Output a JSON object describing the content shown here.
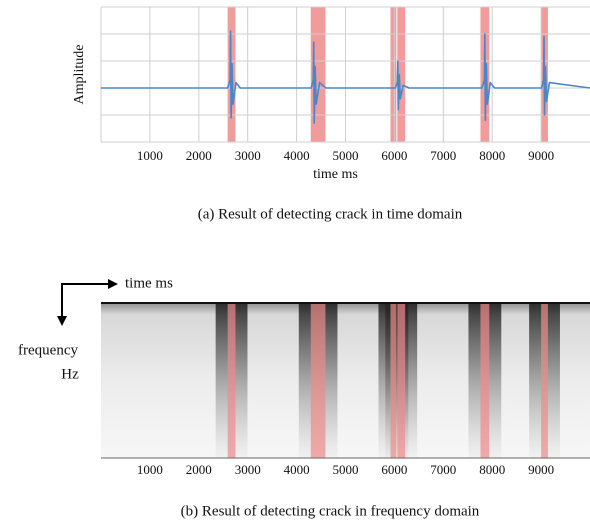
{
  "chart_data": [
    {
      "type": "line",
      "caption": "(a) Result of detecting crack in time domain",
      "ylabel": "Amplitude",
      "xlabel": "time ms",
      "xlim": [
        0,
        10000
      ],
      "xticks": [
        1000,
        2000,
        3000,
        4000,
        5000,
        6000,
        7000,
        8000,
        9000
      ],
      "ylim": [
        -2,
        3
      ],
      "ygrid": [
        -2,
        -1,
        0,
        1,
        2,
        3
      ],
      "grid": true,
      "band_color": "#f08a8a",
      "bands": [
        [
          2590,
          2750
        ],
        [
          4290,
          4590
        ],
        [
          5920,
          6040
        ],
        [
          6060,
          6220
        ],
        [
          7760,
          7940
        ],
        [
          9000,
          9140
        ]
      ],
      "series": [
        {
          "color": "#4a86c8",
          "x": [
            0,
            2590,
            2640,
            2650,
            2660,
            2680,
            2700,
            2760,
            2850,
            4300,
            4340,
            4350,
            4360,
            4380,
            4400,
            4470,
            4600,
            6020,
            6060,
            6070,
            6080,
            6100,
            6120,
            6180,
            6300,
            7790,
            7840,
            7850,
            7860,
            7880,
            7900,
            7960,
            8050,
            9010,
            9050,
            9060,
            9070,
            9090,
            9110,
            9170,
            10000
          ],
          "y": [
            0,
            0,
            0.3,
            2.1,
            -1.1,
            0.9,
            -0.6,
            0.2,
            0,
            0,
            0.3,
            1.7,
            -1.3,
            0.8,
            -0.6,
            0.2,
            0,
            0,
            0.2,
            1.0,
            -0.8,
            0.5,
            -0.4,
            0.1,
            0,
            0,
            0.3,
            2.0,
            -1.2,
            0.9,
            -0.6,
            0.2,
            0,
            0,
            0.3,
            1.9,
            -1.0,
            0.8,
            -0.5,
            0.2,
            0
          ]
        }
      ]
    },
    {
      "type": "spectrogram",
      "caption": "(b) Result of detecting crack in frequency domain",
      "xlabel": "time ms",
      "ylabel_1": "frequency",
      "ylabel_2": "Hz",
      "xlim": [
        0,
        10000
      ],
      "xticks": [
        1000,
        2000,
        3000,
        4000,
        5000,
        6000,
        7000,
        8000,
        9000
      ],
      "band_color": "#f08a8a",
      "bands": [
        [
          2590,
          2750
        ],
        [
          4290,
          4590
        ],
        [
          5920,
          6040
        ],
        [
          6060,
          6220
        ],
        [
          7760,
          7940
        ],
        [
          9000,
          9140
        ]
      ]
    }
  ]
}
